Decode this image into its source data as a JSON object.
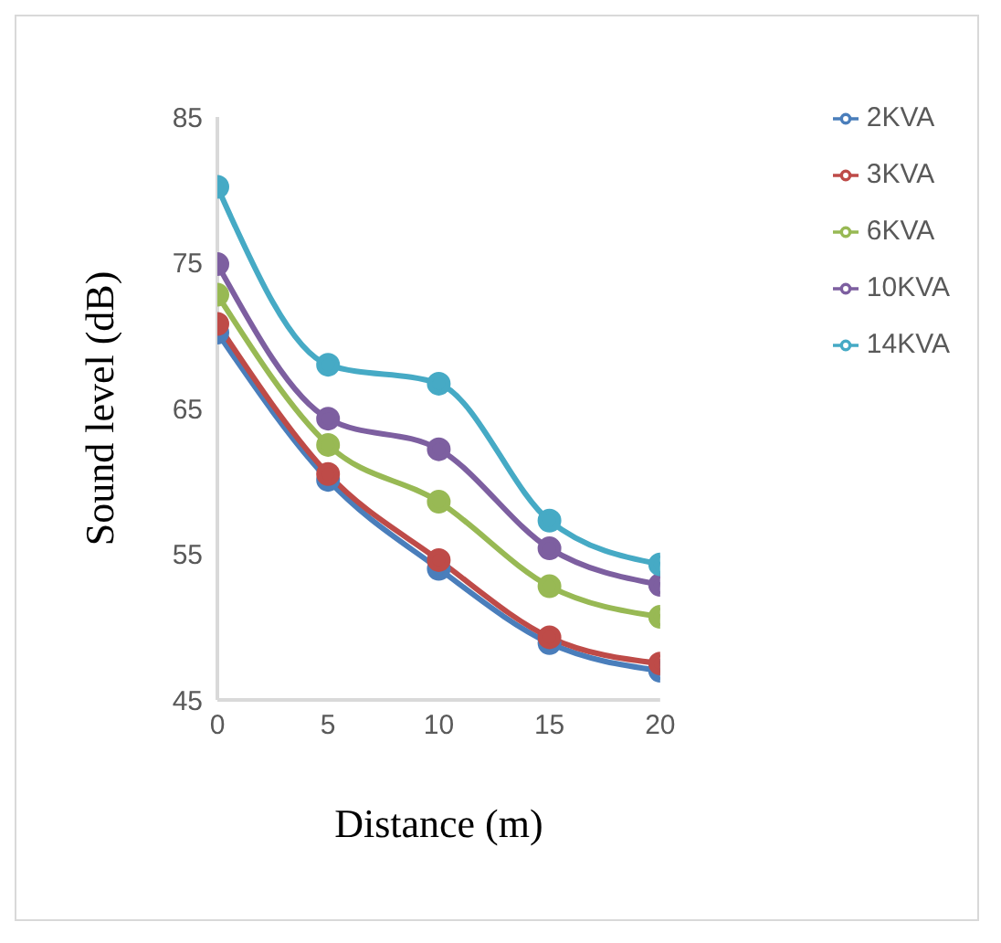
{
  "chart_data": {
    "type": "line",
    "xlabel": "Distance (m)",
    "ylabel": "Sound level (dB)",
    "x": [
      0,
      5,
      10,
      15,
      20
    ],
    "series": [
      {
        "name": "2KVA",
        "color": "#4a7ebb",
        "values": [
          70.2,
          60.1,
          54.0,
          48.9,
          47.0
        ]
      },
      {
        "name": "3KVA",
        "color": "#be4b48",
        "values": [
          70.8,
          60.5,
          54.6,
          49.3,
          47.5
        ]
      },
      {
        "name": "6KVA",
        "color": "#98b954",
        "values": [
          72.8,
          62.5,
          58.6,
          52.8,
          50.7
        ]
      },
      {
        "name": "10KVA",
        "color": "#7d5fa0",
        "values": [
          74.9,
          64.3,
          62.2,
          55.4,
          52.9
        ]
      },
      {
        "name": "14KVA",
        "color": "#46aac5",
        "values": [
          80.2,
          68.0,
          66.7,
          57.3,
          54.3
        ]
      }
    ],
    "xlim": [
      0,
      20
    ],
    "xticks": [
      0,
      5,
      10,
      15,
      20
    ],
    "ylim": [
      45,
      85
    ],
    "yticks": [
      45,
      55,
      65,
      75,
      85
    ],
    "grid": false,
    "legend": "top right",
    "marker": "circle",
    "line_style": "solid"
  }
}
